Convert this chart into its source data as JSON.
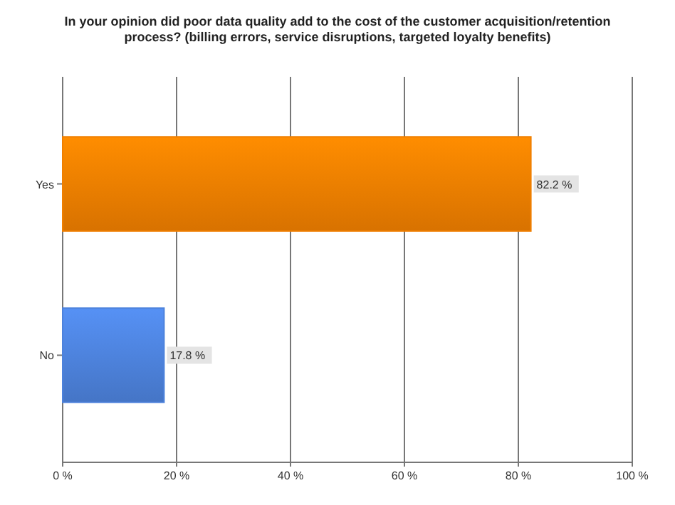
{
  "chart_data": {
    "type": "bar",
    "orientation": "horizontal",
    "title": "In your opinion did poor data quality add to the cost of the customer acquisition/retention process?  (billing errors, service disruptions, targeted loyalty benefits)",
    "categories": [
      "Yes",
      "No"
    ],
    "values": [
      82.2,
      17.8
    ],
    "colors": [
      "#f07f00",
      "#4d82dc"
    ],
    "value_labels": [
      "82.2 %",
      "17.8 %"
    ],
    "xlim": [
      0,
      100
    ],
    "xticks": [
      {
        "value": 0,
        "label": "0 %"
      },
      {
        "value": 20,
        "label": "20 %"
      },
      {
        "value": 40,
        "label": "40 %"
      },
      {
        "value": 60,
        "label": "60 %"
      },
      {
        "value": 80,
        "label": "80 %"
      },
      {
        "value": 100,
        "label": "100 %"
      }
    ],
    "grid": "x"
  }
}
